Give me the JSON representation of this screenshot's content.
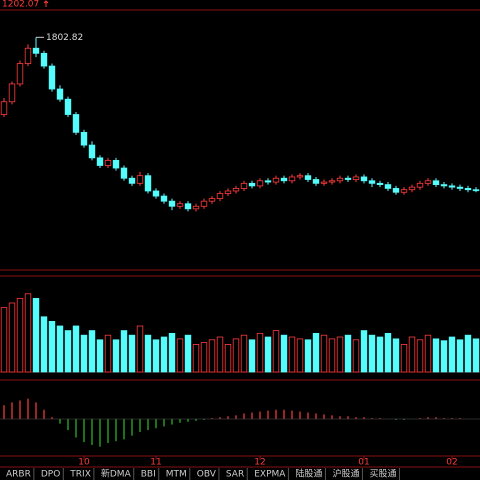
{
  "chart_data": {
    "type": "candlestick",
    "categories": [
      null,
      null,
      null,
      null,
      null,
      null,
      null,
      null,
      null,
      null,
      "10",
      null,
      null,
      null,
      null,
      null,
      null,
      null,
      null,
      "11",
      null,
      null,
      null,
      null,
      null,
      null,
      null,
      null,
      null,
      null,
      null,
      null,
      "12",
      null,
      null,
      null,
      null,
      null,
      null,
      null,
      null,
      null,
      null,
      null,
      null,
      "01",
      null,
      null,
      null,
      null,
      null,
      null,
      null,
      null,
      null,
      null,
      "02",
      null,
      null,
      null
    ],
    "open": [
      1500,
      1550,
      1620,
      1700,
      1760,
      1740,
      1690,
      1600,
      1560,
      1500,
      1430,
      1380,
      1330,
      1300,
      1320,
      1290,
      1250,
      1230,
      1260,
      1200,
      1180,
      1160,
      1140,
      1150,
      1130,
      1140,
      1160,
      1170,
      1190,
      1200,
      1210,
      1230,
      1220,
      1240,
      1235,
      1250,
      1240,
      1255,
      1260,
      1245,
      1230,
      1235,
      1240,
      1250,
      1245,
      1255,
      1240,
      1230,
      1225,
      1210,
      1195,
      1205,
      1215,
      1230,
      1240,
      1225,
      1220,
      1215,
      1210,
      1205
    ],
    "high": [
      1565,
      1630,
      1712,
      1775,
      1802.82,
      1750,
      1700,
      1615,
      1570,
      1510,
      1440,
      1395,
      1340,
      1330,
      1330,
      1300,
      1260,
      1275,
      1270,
      1210,
      1190,
      1170,
      1160,
      1160,
      1150,
      1170,
      1180,
      1200,
      1210,
      1220,
      1240,
      1240,
      1250,
      1250,
      1260,
      1260,
      1265,
      1270,
      1270,
      1255,
      1245,
      1250,
      1260,
      1260,
      1265,
      1265,
      1250,
      1240,
      1235,
      1220,
      1215,
      1225,
      1240,
      1250,
      1250,
      1235,
      1230,
      1225,
      1220,
      1215
    ],
    "low": [
      1490,
      1540,
      1610,
      1690,
      1725,
      1680,
      1590,
      1550,
      1490,
      1420,
      1370,
      1320,
      1290,
      1290,
      1280,
      1240,
      1220,
      1220,
      1190,
      1170,
      1150,
      1125,
      1130,
      1120,
      1120,
      1130,
      1150,
      1160,
      1180,
      1190,
      1200,
      1210,
      1210,
      1225,
      1225,
      1230,
      1230,
      1245,
      1235,
      1220,
      1220,
      1225,
      1230,
      1235,
      1235,
      1230,
      1215,
      1215,
      1200,
      1185,
      1185,
      1195,
      1205,
      1220,
      1215,
      1210,
      1205,
      1200,
      1195,
      1195
    ],
    "close": [
      1550,
      1620,
      1700,
      1760,
      1740,
      1690,
      1600,
      1560,
      1500,
      1430,
      1380,
      1330,
      1300,
      1320,
      1290,
      1250,
      1230,
      1260,
      1200,
      1180,
      1160,
      1140,
      1150,
      1130,
      1140,
      1160,
      1170,
      1190,
      1200,
      1210,
      1230,
      1220,
      1240,
      1235,
      1250,
      1240,
      1255,
      1260,
      1245,
      1230,
      1235,
      1240,
      1250,
      1245,
      1255,
      1240,
      1230,
      1225,
      1210,
      1195,
      1205,
      1215,
      1230,
      1240,
      1225,
      1220,
      1215,
      1210,
      1205,
      1202.07
    ],
    "ylim": [
      890,
      1910
    ],
    "volume": [
      70,
      75,
      80,
      85,
      80,
      60,
      55,
      50,
      45,
      50,
      40,
      45,
      35,
      40,
      35,
      45,
      40,
      50,
      40,
      35,
      38,
      42,
      36,
      40,
      30,
      32,
      35,
      38,
      30,
      36,
      40,
      35,
      42,
      38,
      45,
      40,
      38,
      36,
      35,
      42,
      40,
      36,
      38,
      40,
      35,
      45,
      40,
      38,
      42,
      36,
      30,
      38,
      35,
      40,
      36,
      34,
      38,
      35,
      40,
      36
    ],
    "volume_ylim": [
      0,
      100
    ],
    "macd": [
      15,
      18,
      20,
      22,
      18,
      10,
      2,
      -5,
      -12,
      -20,
      -25,
      -28,
      -30,
      -26,
      -24,
      -22,
      -18,
      -14,
      -12,
      -10,
      -8,
      -6,
      -4,
      -3,
      -2,
      -1,
      1,
      2,
      3,
      4,
      6,
      7,
      8,
      9,
      10,
      10,
      9,
      8,
      7,
      6,
      5,
      4,
      3,
      3,
      2,
      2,
      1,
      1,
      0,
      -1,
      -1,
      0,
      1,
      2,
      2,
      1,
      1,
      1,
      0,
      0
    ],
    "macd_ylim": [
      -40,
      40
    ],
    "up_color": "#ff3c3c",
    "down_color": "#54fcfc",
    "macd_down_color": "#2fbf2f",
    "tabs": [
      "ARBR",
      "DPO",
      "TRIX",
      "新DMA",
      "BBI",
      "MTM",
      "OBV",
      "SAR",
      "EXPMA",
      "陆股通",
      "沪股通",
      "买股通"
    ]
  }
}
